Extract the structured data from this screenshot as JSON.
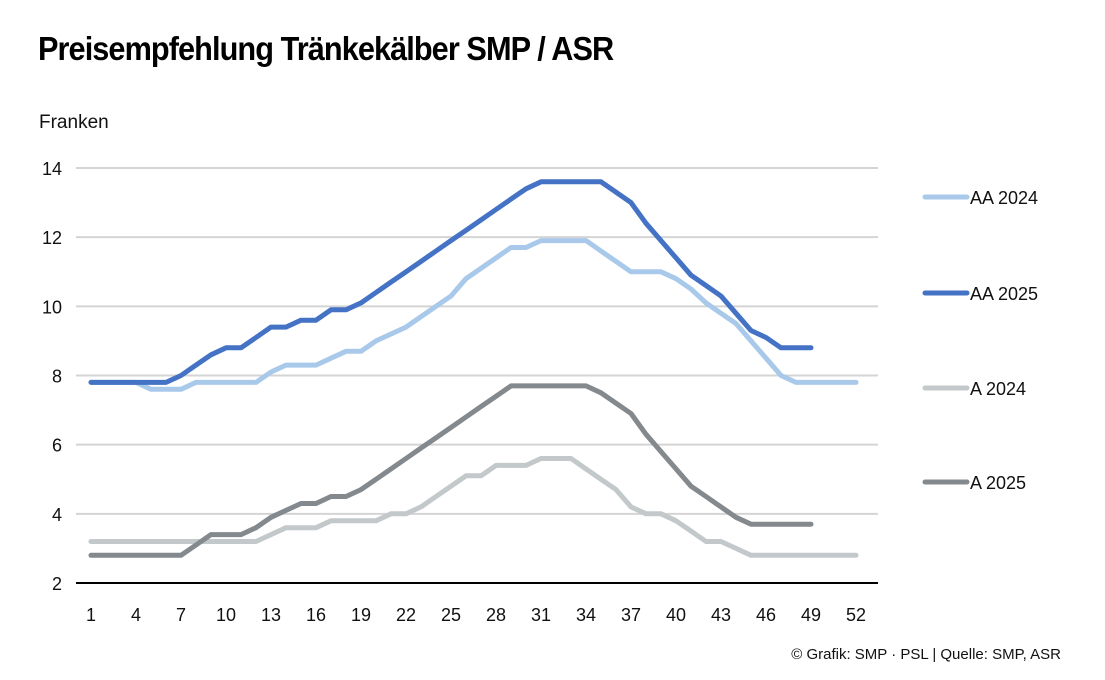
{
  "header": {
    "title": "Preisempfehlung Tränkekälber SMP / ASR",
    "unit_label": "Franken"
  },
  "footer": {
    "credit": "© Grafik: SMP · PSL | Quelle: SMP, ASR"
  },
  "chart_data": {
    "type": "line",
    "title": "Preisempfehlung Tränkekälber SMP / ASR",
    "xlabel": "",
    "ylabel": "Franken",
    "xlim": [
      1,
      52
    ],
    "ylim": [
      2,
      14
    ],
    "x_ticks": [
      1,
      4,
      7,
      10,
      13,
      16,
      19,
      22,
      25,
      28,
      31,
      34,
      37,
      40,
      43,
      46,
      49,
      52
    ],
    "y_ticks": [
      2,
      4,
      6,
      8,
      10,
      12,
      14
    ],
    "grid": "horizontal",
    "legend_position": "right",
    "x": [
      1,
      2,
      3,
      4,
      5,
      6,
      7,
      8,
      9,
      10,
      11,
      12,
      13,
      14,
      15,
      16,
      17,
      18,
      19,
      20,
      21,
      22,
      23,
      24,
      25,
      26,
      27,
      28,
      29,
      30,
      31,
      32,
      33,
      34,
      35,
      36,
      37,
      38,
      39,
      40,
      41,
      42,
      43,
      44,
      45,
      46,
      47,
      48,
      49,
      50,
      51,
      52
    ],
    "series": [
      {
        "name": "AA 2024",
        "color": "#a9c9ea",
        "values": [
          7.8,
          7.8,
          7.8,
          7.8,
          7.6,
          7.6,
          7.6,
          7.8,
          7.8,
          7.8,
          7.8,
          7.8,
          8.1,
          8.3,
          8.3,
          8.3,
          8.5,
          8.7,
          8.7,
          9.0,
          9.2,
          9.4,
          9.7,
          10.0,
          10.3,
          10.8,
          11.1,
          11.4,
          11.7,
          11.7,
          11.9,
          11.9,
          11.9,
          11.9,
          11.6,
          11.3,
          11.0,
          11.0,
          11.0,
          10.8,
          10.5,
          10.1,
          9.8,
          9.5,
          9.0,
          8.5,
          8.0,
          7.8,
          7.8,
          7.8,
          7.8,
          7.8
        ]
      },
      {
        "name": "AA 2025",
        "color": "#4472c4",
        "values": [
          7.8,
          7.8,
          7.8,
          7.8,
          7.8,
          7.8,
          8.0,
          8.3,
          8.6,
          8.8,
          8.8,
          9.1,
          9.4,
          9.4,
          9.6,
          9.6,
          9.9,
          9.9,
          10.1,
          10.4,
          10.7,
          11.0,
          11.3,
          11.6,
          11.9,
          12.2,
          12.5,
          12.8,
          13.1,
          13.4,
          13.6,
          13.6,
          13.6,
          13.6,
          13.6,
          13.3,
          13.0,
          12.4,
          11.9,
          11.4,
          10.9,
          10.6,
          10.3,
          9.8,
          9.3,
          9.1,
          8.8,
          8.8,
          8.8,
          null,
          null,
          null
        ]
      },
      {
        "name": "A 2024",
        "color": "#c3c8cb",
        "values": [
          3.2,
          3.2,
          3.2,
          3.2,
          3.2,
          3.2,
          3.2,
          3.2,
          3.2,
          3.2,
          3.2,
          3.2,
          3.4,
          3.6,
          3.6,
          3.6,
          3.8,
          3.8,
          3.8,
          3.8,
          4.0,
          4.0,
          4.2,
          4.5,
          4.8,
          5.1,
          5.1,
          5.4,
          5.4,
          5.4,
          5.6,
          5.6,
          5.6,
          5.3,
          5.0,
          4.7,
          4.2,
          4.0,
          4.0,
          3.8,
          3.5,
          3.2,
          3.2,
          3.0,
          2.8,
          2.8,
          2.8,
          2.8,
          2.8,
          2.8,
          2.8,
          2.8
        ]
      },
      {
        "name": "A 2025",
        "color": "#84898d",
        "values": [
          2.8,
          2.8,
          2.8,
          2.8,
          2.8,
          2.8,
          2.8,
          3.1,
          3.4,
          3.4,
          3.4,
          3.6,
          3.9,
          4.1,
          4.3,
          4.3,
          4.5,
          4.5,
          4.7,
          5.0,
          5.3,
          5.6,
          5.9,
          6.2,
          6.5,
          6.8,
          7.1,
          7.4,
          7.7,
          7.7,
          7.7,
          7.7,
          7.7,
          7.7,
          7.5,
          7.2,
          6.9,
          6.3,
          5.8,
          5.3,
          4.8,
          4.5,
          4.2,
          3.9,
          3.7,
          3.7,
          3.7,
          3.7,
          3.7,
          null,
          null,
          null
        ]
      }
    ],
    "gridline_color": "#d4d4d4",
    "axis_color": "#000000"
  }
}
